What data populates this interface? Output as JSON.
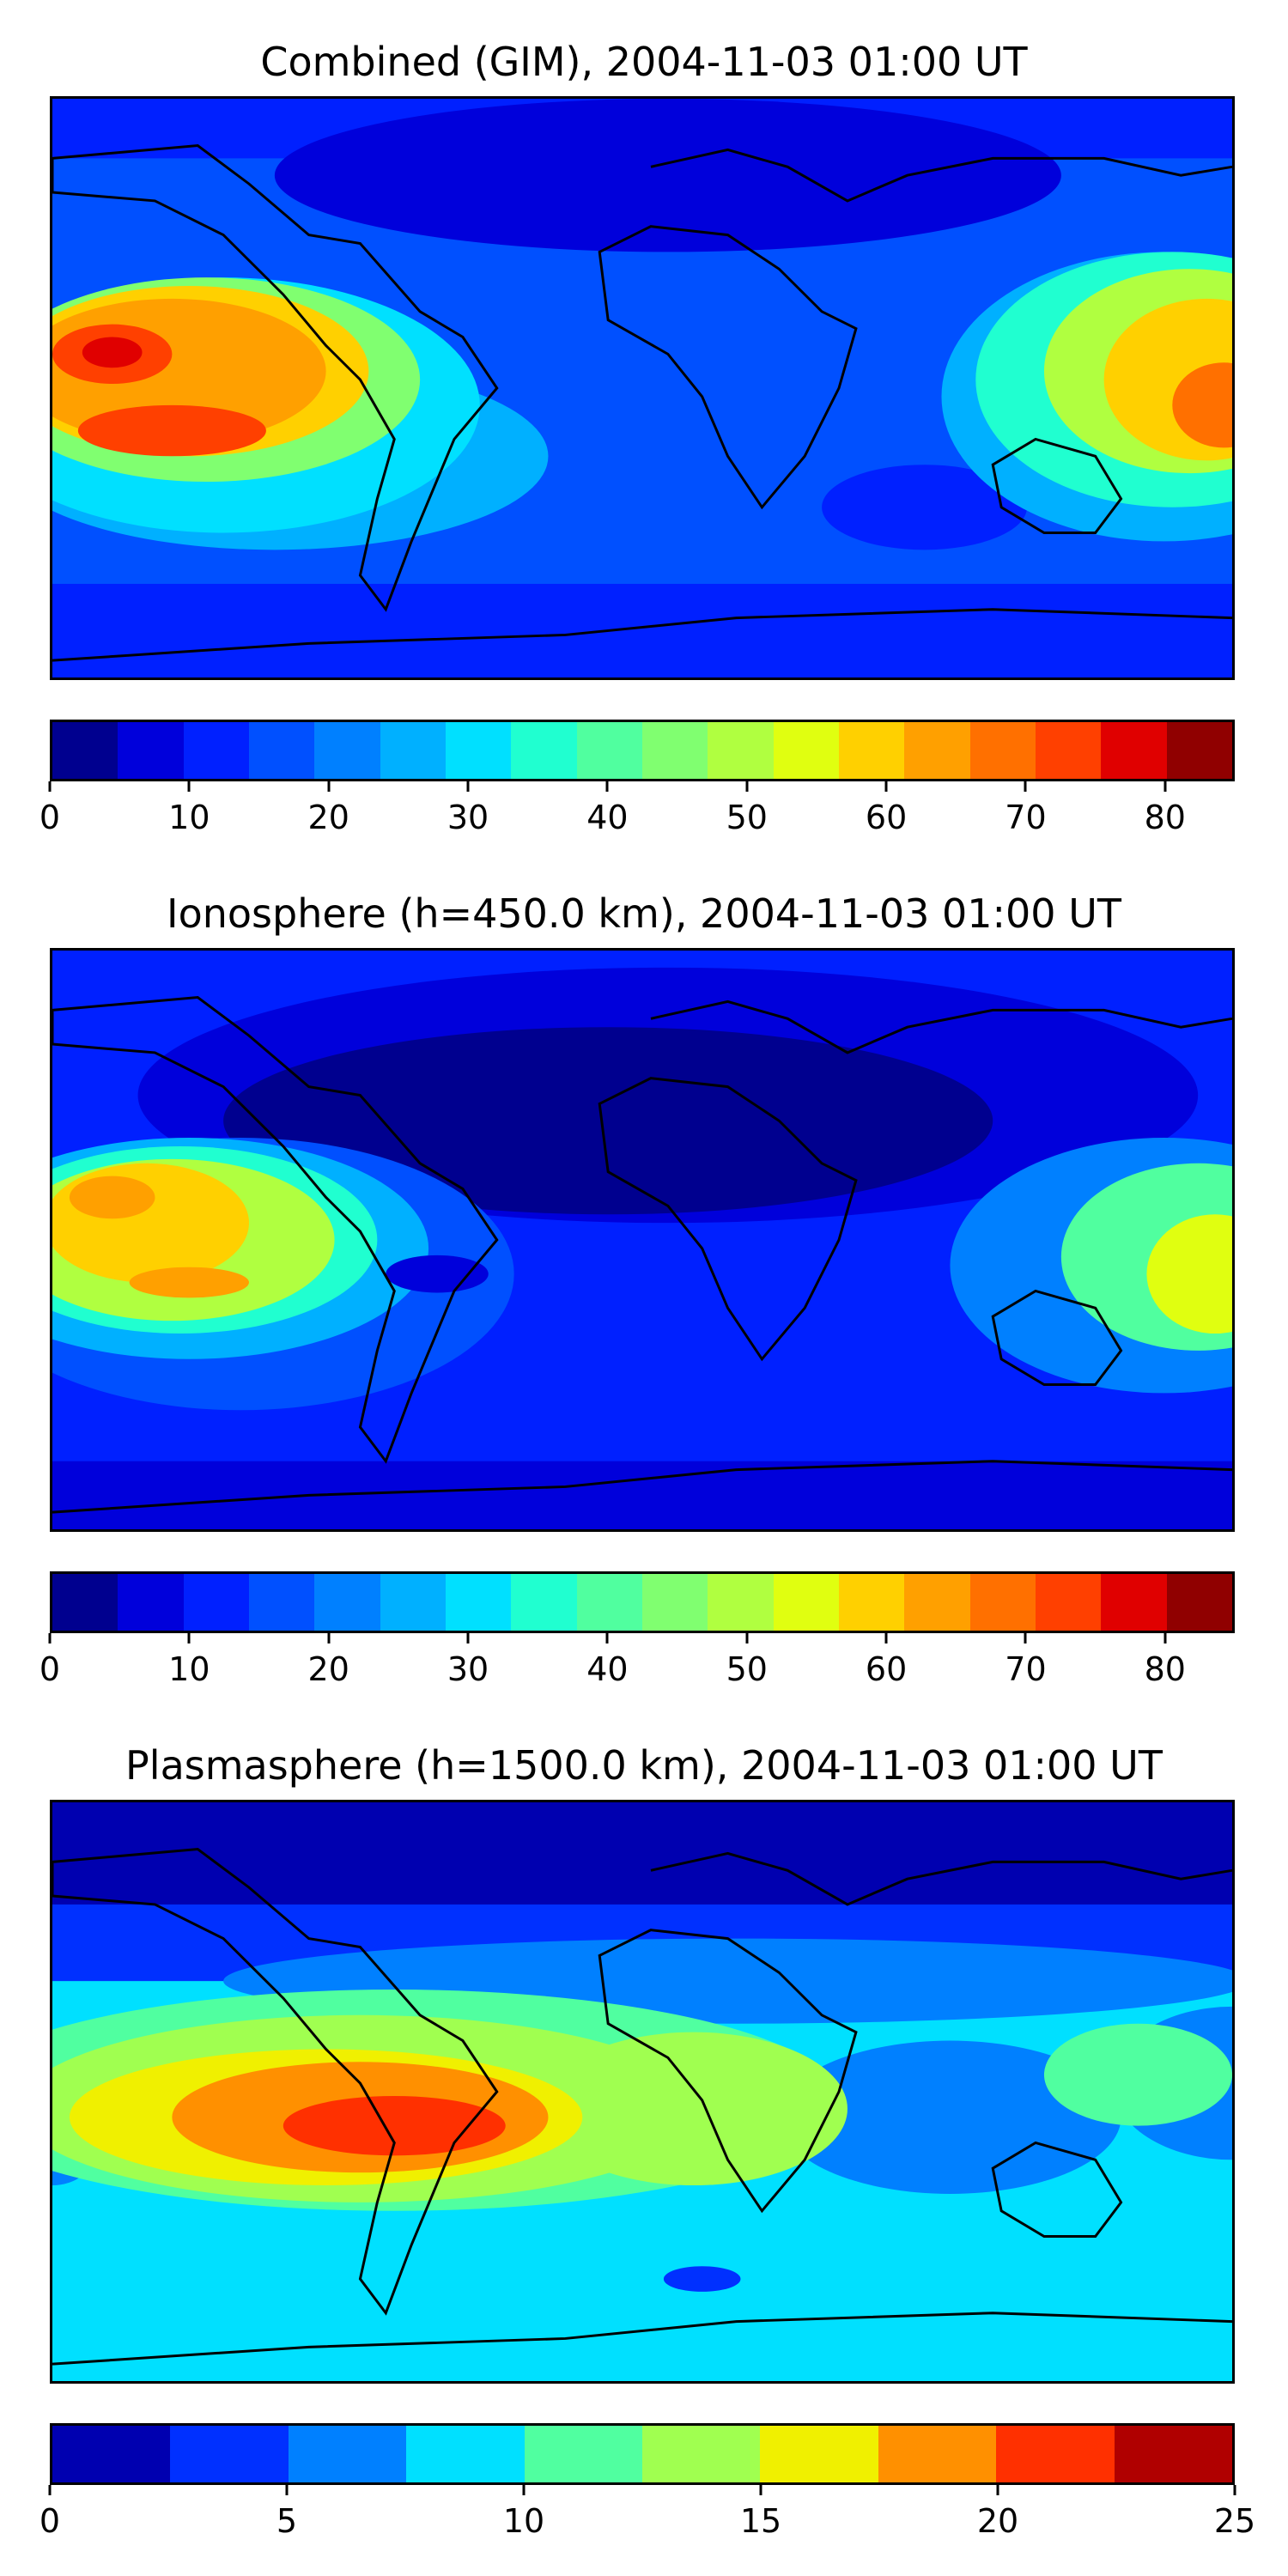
{
  "panels": [
    {
      "title": "Combined (GIM), 2004-11-03 01:00 UT",
      "colorbar": {
        "min": 0,
        "max": 85,
        "ticks": [
          "0",
          "10",
          "20",
          "30",
          "40",
          "50",
          "60",
          "70",
          "80"
        ],
        "tick_values": [
          0,
          10,
          20,
          30,
          40,
          50,
          60,
          70,
          80
        ],
        "colors": [
          "#00008f",
          "#0000db",
          "#0020ff",
          "#0050ff",
          "#0080ff",
          "#00b0ff",
          "#00e0ff",
          "#20ffd0",
          "#50ff9f",
          "#80ff70",
          "#b0ff40",
          "#e0ff10",
          "#ffd000",
          "#ffa000",
          "#ff7000",
          "#ff4000",
          "#e00000",
          "#900000"
        ]
      }
    },
    {
      "title": "Ionosphere  (h=450.0 km), 2004-11-03 01:00 UT",
      "colorbar": {
        "min": 0,
        "max": 85,
        "ticks": [
          "0",
          "10",
          "20",
          "30",
          "40",
          "50",
          "60",
          "70",
          "80"
        ],
        "tick_values": [
          0,
          10,
          20,
          30,
          40,
          50,
          60,
          70,
          80
        ],
        "colors": [
          "#00008f",
          "#0000db",
          "#0020ff",
          "#0050ff",
          "#0080ff",
          "#00b0ff",
          "#00e0ff",
          "#20ffd0",
          "#50ff9f",
          "#80ff70",
          "#b0ff40",
          "#e0ff10",
          "#ffd000",
          "#ffa000",
          "#ff7000",
          "#ff4000",
          "#e00000",
          "#900000"
        ]
      }
    },
    {
      "title": "Plasmasphere (h=1500.0 km), 2004-11-03 01:00 UT",
      "colorbar": {
        "min": 0,
        "max": 25,
        "ticks": [
          "0",
          "5",
          "10",
          "15",
          "20",
          "25"
        ],
        "tick_values": [
          0,
          5,
          10,
          15,
          20,
          25
        ],
        "colors": [
          "#0000b0",
          "#0030ff",
          "#0080ff",
          "#00e0ff",
          "#50ffa0",
          "#a0ff50",
          "#f0f000",
          "#ff9000",
          "#ff3000",
          "#b00000"
        ]
      }
    }
  ]
}
